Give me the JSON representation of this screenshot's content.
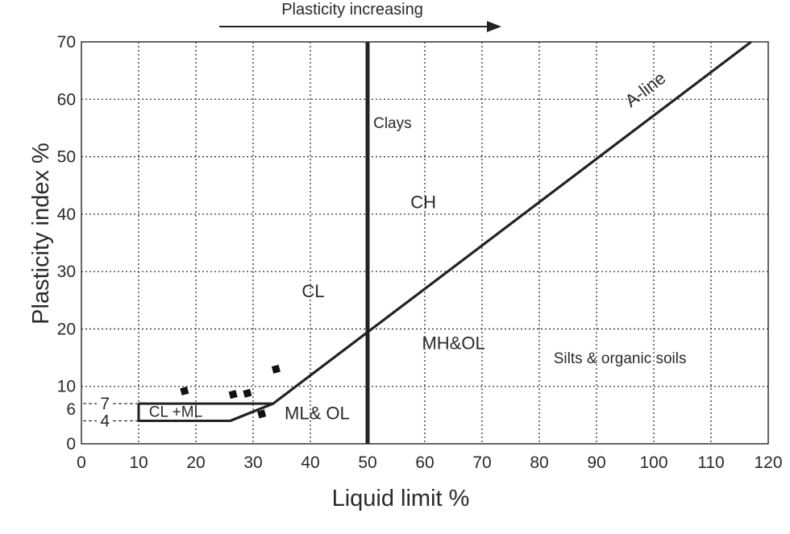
{
  "chart_data": {
    "type": "line",
    "xlabel": "Liquid limit %",
    "ylabel": "Plasticity index %",
    "xlim": [
      0,
      120
    ],
    "ylim": [
      0,
      70
    ],
    "x_ticks": [
      0,
      10,
      20,
      30,
      40,
      50,
      60,
      70,
      80,
      90,
      100,
      110,
      120
    ],
    "y_ticks": [
      0,
      10,
      20,
      30,
      40,
      50,
      60,
      70
    ],
    "extra_y_ticks": [
      {
        "label": "7",
        "value": 7
      },
      {
        "label": "6",
        "value": 6
      },
      {
        "label": "4",
        "value": 4
      }
    ],
    "grid": "dotted",
    "arrow_label": "Plasticity increasing",
    "a_line": {
      "label": "A-line",
      "points": [
        [
          26,
          4
        ],
        [
          33.5,
          7
        ],
        [
          117,
          70
        ]
      ]
    },
    "vertical_line": {
      "x": 50
    },
    "cl_ml_zone": {
      "label": "CL +ML",
      "points": [
        [
          10,
          7
        ],
        [
          33.5,
          7
        ],
        [
          26,
          4
        ],
        [
          10,
          4
        ],
        [
          10,
          7
        ]
      ]
    },
    "regions": [
      {
        "label": "Clays",
        "x": 51,
        "y": 55
      },
      {
        "label": "CH",
        "x": 57.5,
        "y": 41
      },
      {
        "label": "CL",
        "x": 38.5,
        "y": 25.5
      },
      {
        "label": "MH&OL",
        "x": 59.5,
        "y": 16.5
      },
      {
        "label": "Silts & organic soils",
        "x": 82.5,
        "y": 14
      },
      {
        "label": "ML& OL",
        "x": 35.5,
        "y": 4.3
      }
    ],
    "data_points": [
      {
        "x": 18,
        "y": 9.2
      },
      {
        "x": 26.5,
        "y": 8.6
      },
      {
        "x": 29,
        "y": 8.8
      },
      {
        "x": 31.5,
        "y": 5.2
      },
      {
        "x": 34,
        "y": 13
      }
    ]
  }
}
